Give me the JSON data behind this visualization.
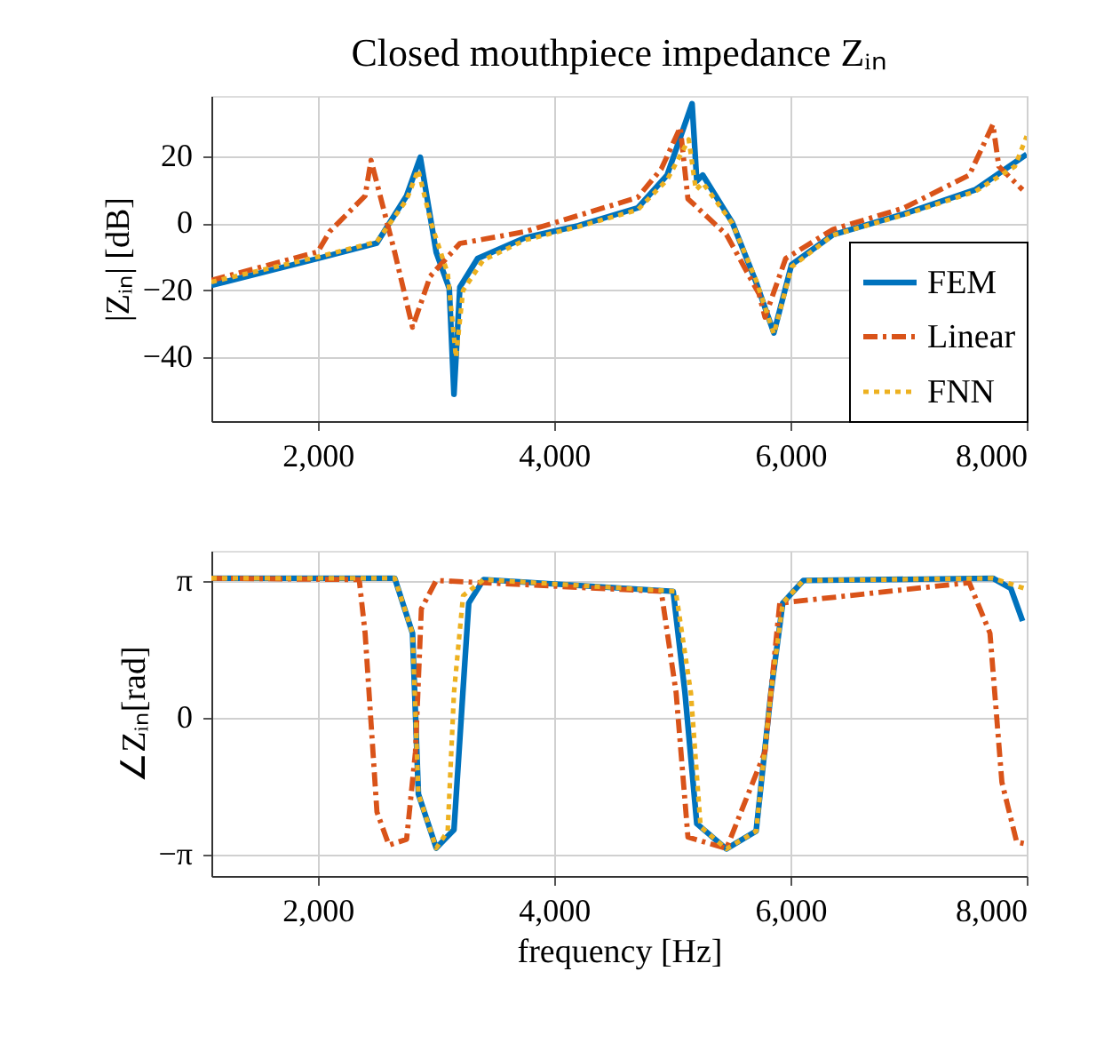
{
  "chart_data": [
    {
      "type": "line",
      "title": "Closed mouthpiece impedance Zᵢₙ",
      "ylabel": "|Zᵢₙ| [dB]",
      "xlim": [
        1100,
        8000
      ],
      "xticks": [
        {
          "value": 2000,
          "label": "2,000"
        },
        {
          "value": 4000,
          "label": "4,000"
        },
        {
          "value": 6000,
          "label": "6,000"
        },
        {
          "value": 8000,
          "label": "8,000"
        }
      ],
      "ylim": [
        -59,
        38
      ],
      "yticks": [
        -40,
        -20,
        0,
        20
      ],
      "grid": true,
      "legend": "bottom right",
      "marker": "none",
      "series": [
        {
          "name": "FEM",
          "color": "#0072bd",
          "line_style": "solid",
          "x": [
            1100,
            2000,
            2500,
            2752,
            2868,
            3003,
            3113,
            3153,
            3203,
            3353,
            3754,
            4205,
            4707,
            4957,
            5168,
            5208,
            5258,
            5509,
            5710,
            5860,
            6010,
            6361,
            6962,
            7564,
            8000
          ],
          "values": [
            -18.5,
            -10.5,
            -5.9,
            8.2,
            19.7,
            -8.7,
            -19.4,
            -51,
            -19,
            -10.5,
            -4.3,
            -0.7,
            4.6,
            14.4,
            35.7,
            12.6,
            14.4,
            0.2,
            -17.6,
            -32.7,
            -12.3,
            -3.4,
            2.8,
            10,
            20.6
          ]
        },
        {
          "name": "Linear",
          "color": "#d95319",
          "line_style": "dashdot",
          "x": [
            1100,
            2000,
            2100,
            2401,
            2451,
            2652,
            2802,
            2952,
            3203,
            3754,
            4707,
            4907,
            5068,
            5133,
            5459,
            5734,
            5785,
            5960,
            6361,
            6962,
            7514,
            7714,
            7764,
            7965
          ],
          "values": [
            -17,
            -8.5,
            -2.5,
            8.2,
            18.8,
            -8.7,
            -31,
            -15.8,
            -6,
            -2.5,
            7.7,
            16.2,
            28.6,
            7.3,
            -3.4,
            -21,
            -28,
            -10.5,
            -1.8,
            4.6,
            14.4,
            29.5,
            17,
            10
          ]
        },
        {
          "name": "FNN",
          "color": "#edb120",
          "line_style": "dotted",
          "x": [
            1100,
            2000,
            2500,
            2752,
            2850,
            2960,
            3100,
            3170,
            3230,
            3400,
            3754,
            4205,
            4707,
            4957,
            5140,
            5200,
            5260,
            5509,
            5710,
            5860,
            6010,
            6361,
            6962,
            7564,
            7900,
            8000
          ],
          "values": [
            -17.5,
            -10,
            -5.5,
            7,
            16,
            0,
            -15,
            -40,
            -20,
            -11,
            -5,
            -1,
            4,
            13,
            25,
            10,
            12,
            0,
            -17,
            -33,
            -13,
            -3.5,
            2.5,
            9.5,
            17,
            26
          ]
        }
      ]
    },
    {
      "type": "line",
      "xlabel": "frequency [Hz]",
      "ylabel": "∠Zᵢₙ[rad]",
      "xlim": [
        1100,
        8000
      ],
      "xticks": [
        {
          "value": 2000,
          "label": "2,000"
        },
        {
          "value": 4000,
          "label": "4,000"
        },
        {
          "value": 6000,
          "label": "6,000"
        },
        {
          "value": 8000,
          "label": "8,000"
        }
      ],
      "ylim": [
        -3.63,
        3.83
      ],
      "yticks": [
        {
          "value": -3.14159,
          "label": "−π"
        },
        0,
        {
          "value": 3.14159,
          "label": "π"
        }
      ],
      "grid": true,
      "legend": false,
      "marker": "none",
      "series": [
        {
          "color": "#0072bd",
          "line_style": "solid",
          "x": [
            1100,
            2652,
            2802,
            2852,
            3003,
            3153,
            3228,
            3278,
            3403,
            5008,
            5108,
            5208,
            5459,
            5710,
            5835,
            5935,
            6110,
            7714,
            7865,
            7965
          ],
          "values": [
            3.2,
            3.2,
            1.94,
            -1.75,
            -2.99,
            -2.57,
            0.57,
            2.63,
            3.17,
            2.9,
            0.57,
            -2.43,
            -3.01,
            -2.6,
            0.57,
            2.63,
            3.15,
            3.2,
            2.97,
            2.22
          ]
        },
        {
          "color": "#d95319",
          "line_style": "dashdot",
          "x": [
            1100,
            2351,
            2401,
            2501,
            2602,
            2752,
            2827,
            2877,
            3003,
            4907,
            5033,
            5133,
            5459,
            5785,
            5910,
            7514,
            7689,
            7790,
            7915,
            8000
          ],
          "values": [
            3.2,
            3.17,
            1.94,
            -2.16,
            -2.92,
            -2.79,
            -0.78,
            2.5,
            3.15,
            2.9,
            0.57,
            -2.74,
            -3.0,
            -0.78,
            2.63,
            3.1,
            1.94,
            -1.48,
            -2.85,
            -2.9
          ]
        },
        {
          "color": "#edb120",
          "line_style": "dotted",
          "x": [
            1100,
            2652,
            2802,
            2852,
            3003,
            3100,
            3153,
            3230,
            3403,
            5030,
            5158,
            5240,
            5459,
            5710,
            5835,
            5935,
            6110,
            7714,
            8000
          ],
          "values": [
            3.2,
            3.2,
            1.94,
            -1.75,
            -2.99,
            -2.6,
            0.57,
            2.8,
            3.17,
            2.9,
            0.57,
            -2.5,
            -3.01,
            -2.6,
            0.57,
            2.63,
            3.15,
            3.2,
            2.95
          ]
        }
      ]
    }
  ]
}
